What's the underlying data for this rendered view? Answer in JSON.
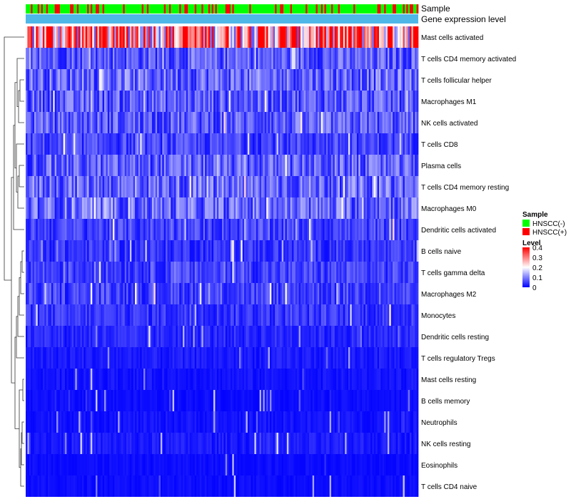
{
  "chart_data": {
    "type": "heatmap",
    "title": "",
    "annotation_tracks": [
      "Sample",
      "Gene expression level"
    ],
    "rows": [
      "Mast cells activated",
      "T cells CD4 memory activated",
      "T cells follicular helper",
      "Macrophages M1",
      "NK cells activated",
      "T cells CD8",
      "Plasma cells",
      "T cells CD4 memory resting",
      "Macrophages M0",
      "Dendritic cells activated",
      "B cells naive",
      "T cells gamma delta",
      "Macrophages M2",
      "Monocytes",
      "Dendritic cells resting",
      "T cells regulatory  Tregs",
      "Mast cells resting",
      "B cells memory",
      "Neutrophils",
      "NK cells resting",
      "Eosinophils",
      "T cells CD4 naive"
    ],
    "row_mean_levels": [
      0.3,
      0.07,
      0.08,
      0.07,
      0.07,
      0.05,
      0.07,
      0.08,
      0.08,
      0.05,
      0.04,
      0.05,
      0.05,
      0.04,
      0.03,
      0.02,
      0.015,
      0.01,
      0.015,
      0.02,
      0.01,
      0.01
    ],
    "n_samples": 230,
    "sample_groups": [
      "HNSCC(-)",
      "HNSCC(+)"
    ],
    "sample_group_share": {
      "HNSCC(-)": 0.75,
      "HNSCC(+)": 0.25
    },
    "color_scale": {
      "min": 0,
      "max": 0.4,
      "colors": [
        "#0000ff",
        "#ffffff",
        "#ff0000"
      ]
    }
  },
  "legend": {
    "sample": {
      "title": "Sample",
      "items": [
        {
          "label": "HNSCC(-)",
          "color": "#00ff00"
        },
        {
          "label": "HNSCC(+)",
          "color": "#ff0000"
        }
      ]
    },
    "level": {
      "title": "Level",
      "ticks": [
        "0.4",
        "0.3",
        "0.2",
        "0.1",
        "0"
      ]
    }
  },
  "colors": {
    "expression_track": "#4fb6e8"
  }
}
